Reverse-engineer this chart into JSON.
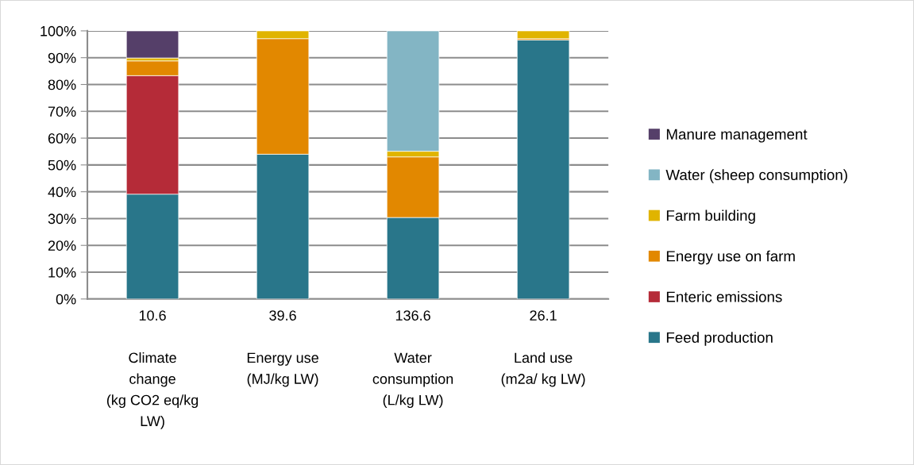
{
  "chart_data": {
    "type": "bar",
    "stacked": true,
    "categories": [
      "10.6\n\nClimate\nchange\n(kg CO2 eq/kg\nLW)",
      "39.6\n\nEnergy use\n(MJ/kg LW)",
      "136.6\n\nWater\nconsumption\n(L/kg LW)",
      "26.1\n\nLand use\n(m2a/ kg LW)"
    ],
    "series": [
      {
        "name": "Feed production",
        "color": "#29768a",
        "values": [
          39.1,
          54.0,
          30.4,
          96.6
        ]
      },
      {
        "name": "Enteric emissions",
        "color": "#b52b38",
        "values": [
          44.2,
          null,
          null,
          null
        ]
      },
      {
        "name": "Energy use on farm",
        "color": "#e28800",
        "values": [
          5.5,
          43.1,
          22.6,
          0.5
        ]
      },
      {
        "name": "Farm building",
        "color": "#e0b400",
        "values": [
          1.1,
          2.9,
          2.1,
          2.9
        ]
      },
      {
        "name": "Water (sheep consumption)",
        "color": "#83b5c4",
        "values": [
          null,
          null,
          44.9,
          null
        ]
      },
      {
        "name": "Manure management",
        "color": "#553f69",
        "values": [
          10.1,
          null,
          null,
          null
        ]
      }
    ],
    "ylim": [
      0,
      100
    ],
    "yticks": [
      {
        "value": 0,
        "label": "0%"
      },
      {
        "value": 10,
        "label": "10%"
      },
      {
        "value": 20,
        "label": "20%"
      },
      {
        "value": 30,
        "label": "30%"
      },
      {
        "value": 40,
        "label": "40%"
      },
      {
        "value": 50,
        "label": "50%"
      },
      {
        "value": 60,
        "label": "60%"
      },
      {
        "value": 70,
        "label": "70%"
      },
      {
        "value": 80,
        "label": "80%"
      },
      {
        "value": 90,
        "label": "90%"
      },
      {
        "value": 100,
        "label": "100%"
      }
    ],
    "grid": "y",
    "legend": "right"
  }
}
